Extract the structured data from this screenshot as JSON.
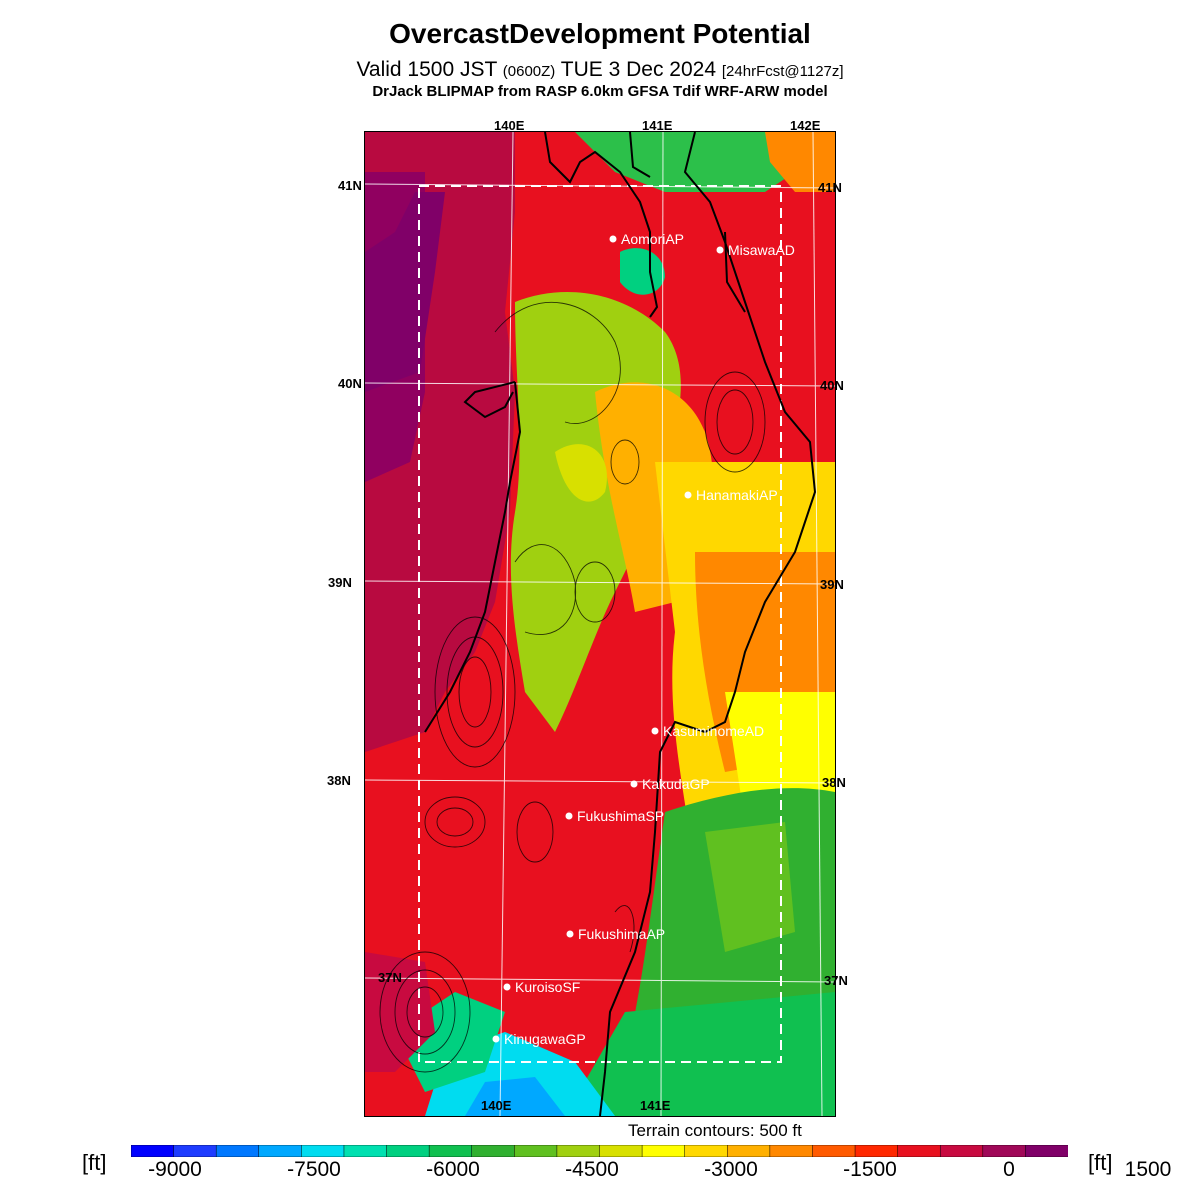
{
  "title": "OvercastDevelopment Potential",
  "subtitle": {
    "part1": "Valid 1500 JST",
    "utc": "(0600Z)",
    "part2": "TUE 3 Dec 2024",
    "forecast": "[24hrFcst@1127z]"
  },
  "model_line": "DrJack BLIPMAP from RASP 6.0km GFSA Tdif WRF-ARW model",
  "terrain_note": "Terrain contours: 500 ft",
  "unit_left": "[ft]",
  "unit_right": "[ft]",
  "longitude_labels": [
    "140E",
    "141E",
    "142E"
  ],
  "latitude_labels": [
    "41N",
    "40N",
    "39N",
    "38N",
    "37N"
  ],
  "stations": [
    {
      "name": "AomoriAP"
    },
    {
      "name": "MisawaAD"
    },
    {
      "name": "HanamakiAP"
    },
    {
      "name": "KasuminomeAD"
    },
    {
      "name": "KakudaGP"
    },
    {
      "name": "FukushimaSP"
    },
    {
      "name": "FukushimaAP"
    },
    {
      "name": "KuroisoSF"
    },
    {
      "name": "KinugawaGP"
    }
  ],
  "colorbar": {
    "tick_labels": [
      "-9000",
      "-7500",
      "-6000",
      "-4500",
      "-3000",
      "-1500",
      "0",
      "1500"
    ],
    "colors": [
      "#0000ff",
      "#1e3cff",
      "#0078ff",
      "#00a8ff",
      "#00dcf0",
      "#00e0b0",
      "#00d080",
      "#10c050",
      "#30b030",
      "#60c020",
      "#a0d010",
      "#d8e000",
      "#ffff00",
      "#ffd800",
      "#ffb000",
      "#ff8800",
      "#ff5a00",
      "#ff2800",
      "#e8101f",
      "#c80a40",
      "#a00858",
      "#800068"
    ]
  }
}
